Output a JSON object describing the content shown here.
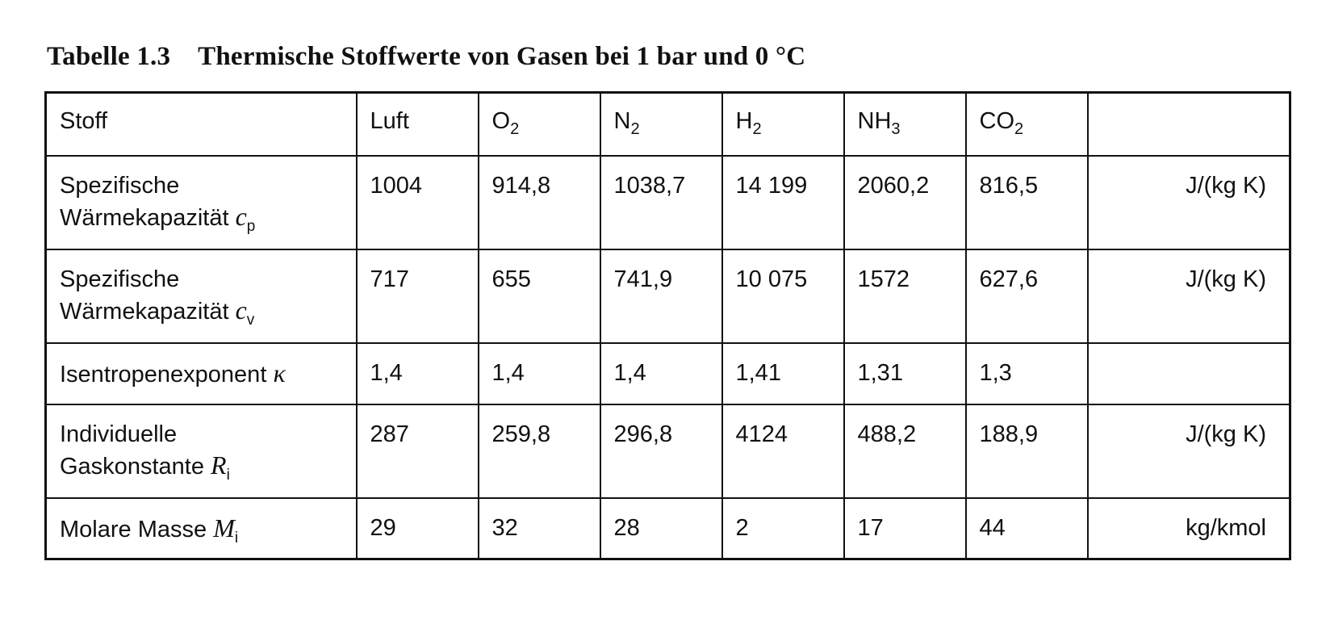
{
  "caption": {
    "number": "Tabelle 1.3",
    "title": "Thermische Stoffwerte von Gasen bei 1 bar und 0 °C"
  },
  "table": {
    "header": {
      "first": "Stoff",
      "gases": [
        {
          "base": "Luft",
          "sub": ""
        },
        {
          "base": "O",
          "sub": "2"
        },
        {
          "base": "N",
          "sub": "2"
        },
        {
          "base": "H",
          "sub": "2"
        },
        {
          "base": "NH",
          "sub": "3"
        },
        {
          "base": "CO",
          "sub": "2"
        }
      ]
    },
    "rows": [
      {
        "label_line1": "Spezifische",
        "label_line2": "Wärmekapazität",
        "symbol": "c",
        "symbol_sub": "p",
        "values": [
          "1004",
          "914,8",
          "1038,7",
          "14 199",
          "2060,2",
          "816,5"
        ],
        "unit": "J/(kg K)"
      },
      {
        "label_line1": "Spezifische",
        "label_line2": "Wärmekapazität",
        "symbol": "c",
        "symbol_sub": "v",
        "values": [
          "717",
          "655",
          "741,9",
          "10 075",
          "1572",
          "627,6"
        ],
        "unit": "J/(kg K)"
      },
      {
        "label_line1": "Isentropenexponent",
        "symbol": "κ",
        "values": [
          "1,4",
          "1,4",
          "1,4",
          "1,41",
          "1,31",
          "1,3"
        ],
        "unit": ""
      },
      {
        "label_line1": "Individuelle",
        "label_line2": "Gaskonstante",
        "symbol": "R",
        "symbol_sub": "i",
        "values": [
          "287",
          "259,8",
          "296,8",
          "4124",
          "488,2",
          "188,9"
        ],
        "unit": "J/(kg K)"
      },
      {
        "label_line1": "Molare Masse",
        "symbol": "M",
        "symbol_sub": "i",
        "values": [
          "29",
          "32",
          "28",
          "2",
          "17",
          "44"
        ],
        "unit": "kg/kmol"
      }
    ]
  }
}
